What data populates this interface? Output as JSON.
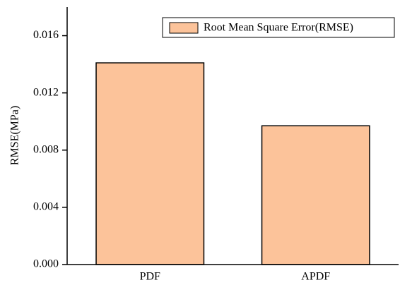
{
  "chart_data": {
    "type": "bar",
    "y_label": "RMSE(MPa)",
    "categories": [
      "PDF",
      "APDF"
    ],
    "series": [
      {
        "name": "Root Mean Square Error(RMSE)",
        "color": "#fcc39a",
        "values": [
          0.0141,
          0.0097
        ]
      }
    ],
    "ylim": [
      0,
      0.018
    ],
    "yticks": [
      {
        "value": 0,
        "label": "0.000"
      },
      {
        "value": 0.004,
        "label": "0.004"
      },
      {
        "value": 0.008,
        "label": "0.008"
      },
      {
        "value": 0.012,
        "label": "0.012"
      },
      {
        "value": 0.016,
        "label": "0.016"
      }
    ],
    "grid": false,
    "legend": "top-right"
  }
}
